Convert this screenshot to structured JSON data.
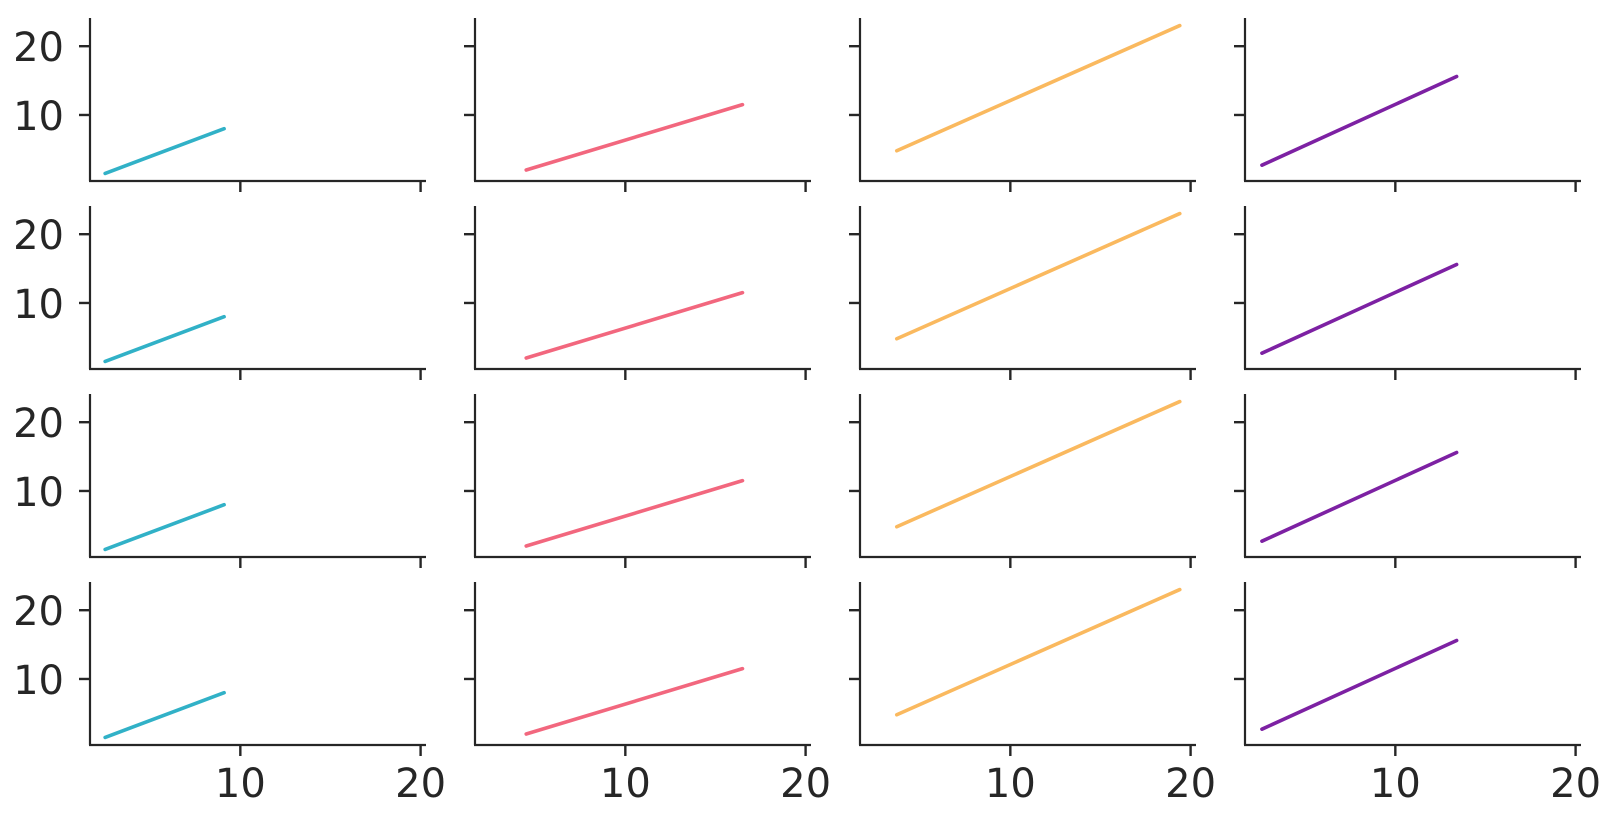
{
  "figure": {
    "background": "#ffffff",
    "axes_color": "#262626",
    "tick_label_color": "#262626"
  },
  "chart_data": {
    "type": "line",
    "title": "",
    "xlabel": "",
    "ylabel": "",
    "grid": "off",
    "legend": "none",
    "facets": {
      "rows": 4,
      "cols": 4,
      "note": "each column shows one colored line segment, repeated identically in all 4 rows; axes shared across all facets"
    },
    "xlim": [
      1.66,
      20.3
    ],
    "ylim": [
      0.4,
      24.1
    ],
    "xticks": [
      10,
      20
    ],
    "yticks": [
      10,
      20
    ],
    "x_tick_labels_row": "bottom row only",
    "y_tick_labels_col": "left column only",
    "series": [
      {
        "name": "teal-line",
        "color": "#31b1c7",
        "x": [
          2.5,
          9.1
        ],
        "y": [
          1.5,
          8.0
        ]
      },
      {
        "name": "pink-line",
        "color": "#f2677e",
        "x": [
          4.5,
          16.5
        ],
        "y": [
          2.0,
          11.5
        ]
      },
      {
        "name": "amber-line",
        "color": "#fab95f",
        "x": [
          3.7,
          19.4
        ],
        "y": [
          4.8,
          23.0
        ]
      },
      {
        "name": "purple-line",
        "color": "#7d21a3",
        "x": [
          2.6,
          13.4
        ],
        "y": [
          2.7,
          15.6
        ]
      }
    ]
  }
}
